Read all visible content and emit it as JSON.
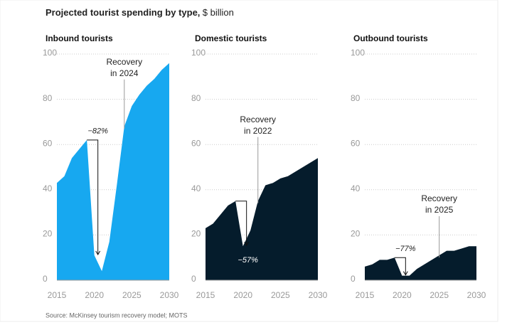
{
  "title": "Projected tourist spending by type,",
  "unit": "$ billion",
  "source": "Source: McKinsey tourism recovery model; MOTS",
  "chart_data": [
    {
      "type": "area",
      "title": "Inbound tourists",
      "color": "#17a8f0",
      "x": [
        2015,
        2016,
        2017,
        2018,
        2019,
        2020,
        2021,
        2022,
        2023,
        2024,
        2025,
        2026,
        2027,
        2028,
        2029,
        2030
      ],
      "values": [
        43,
        46,
        54,
        58,
        62,
        11,
        4,
        17,
        42,
        68,
        77,
        82,
        86,
        89,
        93,
        96
      ],
      "xlim": [
        2015,
        2030
      ],
      "ylim": [
        0,
        100
      ],
      "xticks": [
        2015,
        2020,
        2025,
        2030
      ],
      "yticks": [
        0,
        20,
        40,
        60,
        80,
        100
      ],
      "grid": true,
      "drop_label": "−82%",
      "recovery_label": [
        "Recovery",
        "in 2024"
      ]
    },
    {
      "type": "area",
      "title": "Domestic tourists",
      "color": "#051c2c",
      "x": [
        2015,
        2016,
        2017,
        2018,
        2019,
        2020,
        2021,
        2022,
        2023,
        2024,
        2025,
        2026,
        2027,
        2028,
        2029,
        2030
      ],
      "values": [
        23,
        25,
        29,
        33,
        35,
        15,
        22,
        35,
        42,
        43,
        45,
        46,
        48,
        50,
        52,
        54
      ],
      "xlim": [
        2015,
        2030
      ],
      "ylim": [
        0,
        100
      ],
      "xticks": [
        2015,
        2020,
        2025,
        2030
      ],
      "yticks": [
        0,
        20,
        40,
        60,
        80,
        100
      ],
      "grid": true,
      "drop_label": "−57%",
      "recovery_label": [
        "Recovery",
        "in 2022"
      ]
    },
    {
      "type": "area",
      "title": "Outbound tourists",
      "color": "#051c2c",
      "x": [
        2015,
        2016,
        2017,
        2018,
        2019,
        2020,
        2021,
        2022,
        2023,
        2024,
        2025,
        2026,
        2027,
        2028,
        2029,
        2030
      ],
      "values": [
        6,
        7,
        9,
        9,
        10,
        2,
        2,
        5,
        7,
        9,
        11,
        13,
        13,
        14,
        15,
        15
      ],
      "xlim": [
        2015,
        2030
      ],
      "ylim": [
        0,
        100
      ],
      "xticks": [
        2015,
        2020,
        2025,
        2030
      ],
      "yticks": [
        0,
        20,
        40,
        60,
        80,
        100
      ],
      "grid": true,
      "drop_label": "−77%",
      "recovery_label": [
        "Recovery",
        "in 2025"
      ]
    }
  ]
}
